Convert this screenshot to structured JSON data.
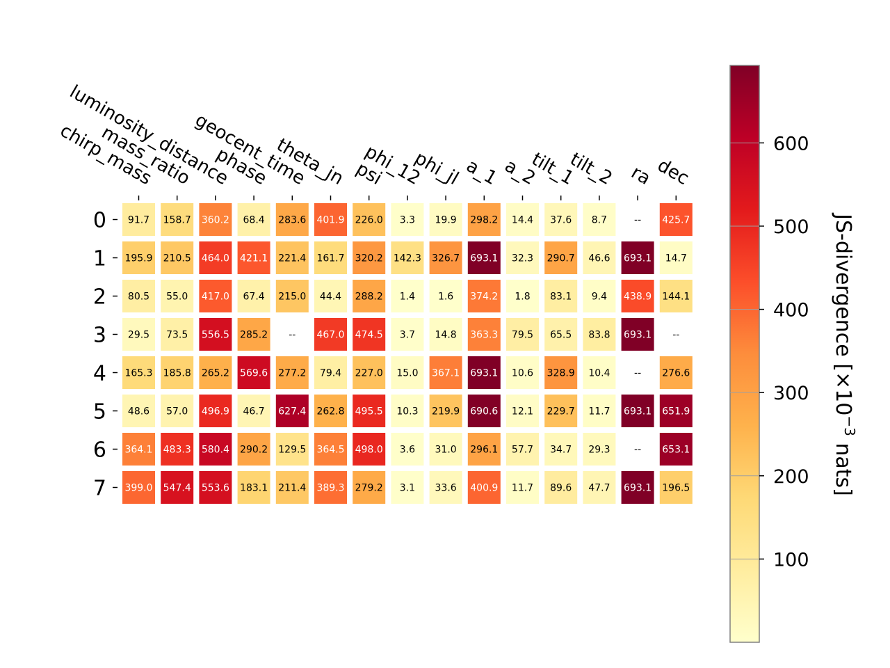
{
  "chart_data": {
    "type": "heatmap",
    "columns": [
      "chirp_mass",
      "mass_ratio",
      "luminosity_distance",
      "phase",
      "geocent_time",
      "theta_jn",
      "psi",
      "phi_12",
      "phi_jl",
      "a_1",
      "a_2",
      "tilt_1",
      "tilt_2",
      "ra",
      "dec"
    ],
    "rows": [
      "0",
      "1",
      "2",
      "3",
      "4",
      "5",
      "6",
      "7"
    ],
    "values": [
      [
        91.7,
        158.7,
        360.2,
        68.4,
        283.6,
        401.9,
        226.0,
        3.3,
        19.9,
        298.2,
        14.4,
        37.6,
        8.7,
        null,
        425.7
      ],
      [
        195.9,
        210.5,
        464.0,
        421.1,
        221.4,
        161.7,
        320.2,
        142.3,
        326.7,
        693.1,
        32.3,
        290.7,
        46.6,
        693.1,
        14.7
      ],
      [
        80.5,
        55.0,
        417.0,
        67.4,
        215.0,
        44.4,
        288.2,
        1.4,
        1.6,
        374.2,
        1.8,
        83.1,
        9.4,
        438.9,
        144.1
      ],
      [
        29.5,
        73.5,
        556.5,
        285.2,
        null,
        467.0,
        474.5,
        3.7,
        14.8,
        363.3,
        79.5,
        65.5,
        83.8,
        693.1,
        null
      ],
      [
        165.3,
        185.8,
        265.2,
        569.6,
        277.2,
        79.4,
        227.0,
        15.0,
        367.1,
        693.1,
        10.6,
        328.9,
        10.4,
        null,
        276.6
      ],
      [
        48.6,
        57.0,
        496.9,
        46.7,
        627.4,
        262.8,
        495.5,
        10.3,
        219.9,
        690.6,
        12.1,
        229.7,
        11.7,
        693.1,
        651.9
      ],
      [
        364.1,
        483.3,
        580.4,
        290.2,
        129.5,
        364.5,
        498.0,
        3.6,
        31.0,
        296.1,
        57.7,
        34.7,
        29.3,
        null,
        653.1
      ],
      [
        399.0,
        547.4,
        553.6,
        183.1,
        211.4,
        389.3,
        279.2,
        3.1,
        33.6,
        400.9,
        11.7,
        89.6,
        47.7,
        693.1,
        196.5
      ]
    ],
    "missing_text": "--",
    "colormap": "YlOrRd",
    "colorbar": {
      "label": "JS-divergence [×10",
      "label_exponent": "−3",
      "label_suffix": " nats]",
      "vmin": 0,
      "vmax": 693.1,
      "ticks": [
        100,
        200,
        300,
        400,
        500,
        600
      ]
    }
  }
}
